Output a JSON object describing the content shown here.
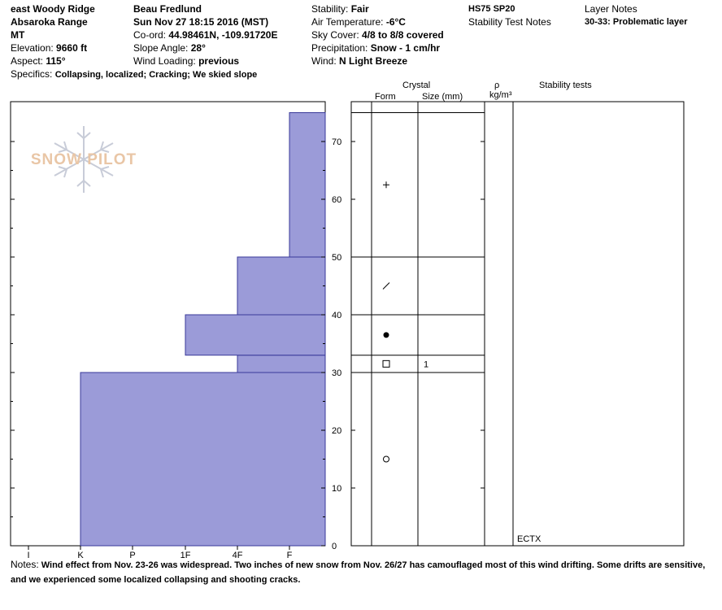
{
  "header": {
    "location": "east Woody Ridge",
    "range": "Absaroka Range",
    "state": "MT",
    "elevation_label": "Elevation:",
    "elevation": "9660 ft",
    "aspect_label": "Aspect:",
    "aspect": "115°",
    "specifics_label": "Specifics:",
    "specifics": "Collapsing, localized; Cracking; We skied slope",
    "observer": "Beau  Fredlund",
    "datetime": "Sun Nov 27 18:15 2016 (MST)",
    "coord_label": "Co-ord:",
    "coord": "44.98461N, -109.91720E",
    "slope_label": "Slope Angle:",
    "slope": "28°",
    "wind_loading_label": "Wind Loading:",
    "wind_loading": "previous",
    "stability_label": "Stability:",
    "stability": "Fair",
    "air_temp_label": "Air Temperature:",
    "air_temp": "-6°C",
    "sky_label": "Sky Cover:",
    "sky": "4/8 to 8/8 covered",
    "precip_label": "Precipitation:",
    "precip": "Snow - 1 cm/hr",
    "wind_label": "Wind:",
    "wind": "N Light Breeze",
    "hs_sp": "HS75 SP20",
    "stability_test_notes_label": "Stability Test Notes",
    "layer_notes_label": "Layer Notes",
    "layer_note": "30-33: Problematic layer"
  },
  "logo_text": "SNOW PILOT",
  "columns": {
    "crystal": "Crystal",
    "form": "Form",
    "size": "Size (mm)",
    "rho": "ρ",
    "density_unit": "kg/m³",
    "stability_tests": "Stability tests"
  },
  "stability_test_result": "ECTX",
  "notes_label": "Notes:",
  "notes": "Wind effect from Nov. 23-26 was widespread.  Two inches of new snow from Nov. 26/27 has camouflaged most of this wind drifting.  Some drifts are sensitive, and we experienced some localized collapsing and shooting cracks.",
  "colors": {
    "hardness_fill": "#9b9bd8",
    "hardness_stroke": "#3a3a9a",
    "logo": "#e9c6a6",
    "flake": "#c8ccd8"
  },
  "chart_data": {
    "type": "bar",
    "orientation": "horizontal-profile",
    "hardness_scale": [
      "I",
      "K",
      "P",
      "1F",
      "4F",
      "F"
    ],
    "y_ticks": [
      0,
      10,
      20,
      30,
      40,
      50,
      60,
      70
    ],
    "ylim": [
      0,
      75
    ],
    "layers": [
      {
        "bottom": 0,
        "top": 30,
        "hardness": "K"
      },
      {
        "bottom": 30,
        "top": 33,
        "hardness": "4F"
      },
      {
        "bottom": 33,
        "top": 40,
        "hardness": "1F"
      },
      {
        "bottom": 40,
        "top": 50,
        "hardness": "4F"
      },
      {
        "bottom": 50,
        "top": 75,
        "hardness": "F"
      }
    ],
    "layer_boundaries": [
      30,
      33,
      40,
      50,
      75
    ],
    "crystals": [
      {
        "height": 62.5,
        "form": "+",
        "form_name": "precipitation particles",
        "size": ""
      },
      {
        "height": 45,
        "form": "/",
        "form_name": "decomposing fragments",
        "size": ""
      },
      {
        "height": 36.5,
        "form": "●",
        "form_name": "rounded grains",
        "size": ""
      },
      {
        "height": 31.5,
        "form": "□",
        "form_name": "faceted crystals",
        "size": "1"
      },
      {
        "height": 15,
        "form": "○",
        "form_name": "melt forms",
        "size": ""
      }
    ]
  }
}
